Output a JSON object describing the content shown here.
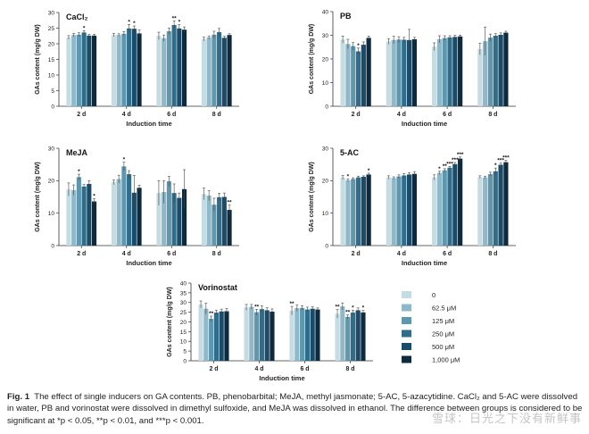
{
  "colors": [
    "#c6dce3",
    "#8fb8c8",
    "#5f98ae",
    "#2f6d8b",
    "#1a4c69",
    "#0d2a3f"
  ],
  "legend": {
    "entries": [
      "0",
      "62.5 μM",
      "125 μM",
      "250 μM",
      "500 μM",
      "1,000 μM"
    ]
  },
  "caption": {
    "label": "Fig. 1",
    "text": "The effect of single inducers on GA contents. PB, phenobarbital; MeJA, methyl jasmonate; 5-AC, 5-azacytidine. CaCl₂ and 5-AC were dissolved in water, PB and vorinostat were dissolved in dimethyl sulfoxide, and MeJA was dissolved in ethanol. The difference between groups is considered to be significant at *p < 0.05, **p < 0.01, and ***p < 0.001."
  },
  "watermark": "雪球：日光之下没有新鲜事",
  "chart_data": [
    {
      "type": "bar",
      "title": "CaCl₂",
      "xlabel": "Induction time",
      "ylabel": "GAs content (mg/g DW)",
      "ylim": [
        0,
        30
      ],
      "yticks": [
        0,
        5,
        10,
        15,
        20,
        25,
        30
      ],
      "categories": [
        "2 d",
        "4 d",
        "6 d",
        "8 d"
      ],
      "series": [
        {
          "name": "0",
          "values": [
            22.0,
            22.8,
            22.5,
            21.5
          ],
          "errors": [
            0.6,
            0.5,
            1.2,
            0.6
          ]
        },
        {
          "name": "62.5 μM",
          "values": [
            22.8,
            22.8,
            21.8,
            22.0
          ],
          "errors": [
            0.5,
            0.4,
            1.0,
            0.5
          ]
        },
        {
          "name": "125 μM",
          "values": [
            22.9,
            23.2,
            24.0,
            22.9
          ],
          "errors": [
            0.6,
            0.7,
            1.0,
            1.1
          ]
        },
        {
          "name": "250 μM",
          "values": [
            23.6,
            24.9,
            26.0,
            23.7
          ],
          "errors": [
            0.6,
            1.3,
            1.3,
            1.2
          ]
        },
        {
          "name": "500 μM",
          "values": [
            22.6,
            24.8,
            24.9,
            21.9
          ],
          "errors": [
            0.4,
            0.9,
            1.2,
            0.5
          ]
        },
        {
          "name": "1,000 μM",
          "values": [
            22.6,
            23.3,
            24.5,
            22.8
          ],
          "errors": [
            0.4,
            1.1,
            0.9,
            0.4
          ]
        }
      ],
      "annotations": [
        [
          "",
          "",
          "",
          "*",
          "",
          ""
        ],
        [
          "",
          "",
          "",
          "*",
          "*",
          ""
        ],
        [
          "",
          "",
          "",
          "**",
          "*",
          ""
        ],
        [
          "",
          "",
          "",
          "",
          "",
          ""
        ]
      ]
    },
    {
      "type": "bar",
      "title": "PB",
      "xlabel": "Induction time",
      "ylabel": "GAs content (mg/g DW)",
      "ylim": [
        0,
        40
      ],
      "yticks": [
        0,
        10,
        20,
        30,
        40
      ],
      "categories": [
        "2 d",
        "4 d",
        "6 d",
        "8 d"
      ],
      "series": [
        {
          "name": "0",
          "values": [
            28.2,
            27.4,
            25.2,
            24.2
          ],
          "errors": [
            1.5,
            1.2,
            1.6,
            2.5
          ]
        },
        {
          "name": "62.5 μM",
          "values": [
            26.3,
            28.0,
            28.3,
            27.5
          ],
          "errors": [
            2.0,
            1.6,
            1.5,
            6.0
          ]
        },
        {
          "name": "125 μM",
          "values": [
            25.4,
            28.2,
            28.8,
            29.0
          ],
          "errors": [
            1.5,
            1.2,
            1.0,
            1.5
          ]
        },
        {
          "name": "250 μM",
          "values": [
            23.2,
            28.1,
            29.1,
            29.8
          ],
          "errors": [
            1.4,
            1.0,
            0.7,
            0.9
          ]
        },
        {
          "name": "500 μM",
          "values": [
            26.0,
            28.0,
            29.3,
            30.2
          ],
          "errors": [
            1.2,
            4.5,
            0.7,
            0.8
          ]
        },
        {
          "name": "1,000 μM",
          "values": [
            28.9,
            28.3,
            29.5,
            31.1
          ],
          "errors": [
            0.8,
            0.8,
            0.6,
            0.6
          ]
        }
      ],
      "annotations": [
        [
          "",
          "",
          "",
          "*",
          "",
          ""
        ],
        [
          "",
          "",
          "",
          "",
          "",
          ""
        ],
        [
          "",
          "",
          "",
          "",
          "",
          ""
        ],
        [
          "",
          "",
          "",
          "",
          "",
          ""
        ]
      ]
    },
    {
      "type": "bar",
      "title": "MeJA",
      "xlabel": "Induction time",
      "ylabel": "GAs content (mg/g DW)",
      "ylim": [
        0,
        30
      ],
      "yticks": [
        0,
        10,
        20,
        30
      ],
      "categories": [
        "2 d",
        "4 d",
        "6 d",
        "8 d"
      ],
      "series": [
        {
          "name": "0",
          "values": [
            17.3,
            19.5,
            16.2,
            15.9
          ],
          "errors": [
            2.0,
            0.7,
            3.8,
            1.8
          ]
        },
        {
          "name": "62.5 μM",
          "values": [
            17.1,
            20.5,
            16.5,
            15.4
          ],
          "errors": [
            1.6,
            1.2,
            3.5,
            1.5
          ]
        },
        {
          "name": "125 μM",
          "values": [
            21.1,
            24.4,
            19.8,
            12.6
          ],
          "errors": [
            0.9,
            1.3,
            1.5,
            2.0
          ]
        },
        {
          "name": "250 μM",
          "values": [
            18.2,
            22.0,
            16.2,
            14.9
          ],
          "errors": [
            0.6,
            1.1,
            2.8,
            1.2
          ]
        },
        {
          "name": "500 μM",
          "values": [
            19.0,
            16.3,
            14.7,
            15.0
          ],
          "errors": [
            1.0,
            5.3,
            1.5,
            1.2
          ]
        },
        {
          "name": "1,000 μM",
          "values": [
            13.6,
            17.8,
            17.4,
            11.0
          ],
          "errors": [
            0.8,
            0.8,
            6.0,
            1.5
          ]
        }
      ],
      "annotations": [
        [
          "",
          "",
          "*",
          "",
          "",
          "*"
        ],
        [
          "",
          "",
          "*",
          "",
          "",
          ""
        ],
        [
          "",
          "",
          "",
          "",
          "",
          ""
        ],
        [
          "",
          "",
          "",
          "",
          "",
          "**"
        ]
      ]
    },
    {
      "type": "bar",
      "title": "5-AC",
      "xlabel": "Induction time",
      "ylabel": "GAs content (mg/g DW)",
      "ylim": [
        0,
        30
      ],
      "yticks": [
        0,
        10,
        20,
        30
      ],
      "categories": [
        "2 d",
        "4 d",
        "6 d",
        "8 d"
      ],
      "series": [
        {
          "name": "0",
          "values": [
            21.0,
            21.0,
            21.0,
            21.1
          ],
          "errors": [
            0.6,
            0.5,
            0.8,
            0.4
          ]
        },
        {
          "name": "62.5 μM",
          "values": [
            20.1,
            20.8,
            22.4,
            21.0
          ],
          "errors": [
            0.4,
            0.4,
            0.5,
            0.4
          ]
        },
        {
          "name": "125 μM",
          "values": [
            20.5,
            21.3,
            23.2,
            22.0
          ],
          "errors": [
            0.4,
            0.5,
            0.5,
            0.6
          ]
        },
        {
          "name": "250 μM",
          "values": [
            21.0,
            21.6,
            24.0,
            22.9
          ],
          "errors": [
            0.4,
            0.6,
            0.4,
            1.0
          ]
        },
        {
          "name": "500 μM",
          "values": [
            21.2,
            21.9,
            25.1,
            24.9
          ],
          "errors": [
            0.3,
            0.6,
            0.5,
            0.5
          ]
        },
        {
          "name": "1,000 μM",
          "values": [
            21.9,
            22.1,
            26.8,
            25.7
          ],
          "errors": [
            0.4,
            0.7,
            0.5,
            0.6
          ]
        }
      ],
      "annotations": [
        [
          "",
          "*",
          "",
          "",
          "",
          "*"
        ],
        [
          "",
          "",
          "",
          "",
          "",
          ""
        ],
        [
          "",
          "*",
          "**",
          "***",
          "***",
          "***"
        ],
        [
          "",
          "",
          "",
          "*",
          "***",
          "***"
        ]
      ]
    },
    {
      "type": "bar",
      "title": "Vorinostat",
      "xlabel": "Induction time",
      "ylabel": "GAs content (mg/g DW)",
      "ylim": [
        0,
        40
      ],
      "yticks": [
        0,
        5,
        10,
        15,
        20,
        25,
        30,
        35,
        40
      ],
      "categories": [
        "2 d",
        "4 d",
        "6 d",
        "8 d"
      ],
      "series": [
        {
          "name": "0",
          "values": [
            29.0,
            27.5,
            25.8,
            24.2
          ],
          "errors": [
            1.8,
            1.5,
            2.2,
            2.2
          ]
        },
        {
          "name": "62.5 μM",
          "values": [
            26.8,
            27.8,
            27.1,
            28.0
          ],
          "errors": [
            2.8,
            1.2,
            1.6,
            1.8
          ]
        },
        {
          "name": "125 μM",
          "values": [
            21.6,
            25.0,
            27.2,
            22.6
          ],
          "errors": [
            1.4,
            1.5,
            1.2,
            1.0
          ]
        },
        {
          "name": "250 μM",
          "values": [
            24.8,
            26.6,
            26.4,
            24.8
          ],
          "errors": [
            1.2,
            1.6,
            1.2,
            1.2
          ]
        },
        {
          "name": "500 μM",
          "values": [
            25.4,
            26.0,
            26.8,
            26.0
          ],
          "errors": [
            1.2,
            1.3,
            1.0,
            1.2
          ]
        },
        {
          "name": "1,000 μM",
          "values": [
            25.5,
            25.3,
            26.4,
            24.9
          ],
          "errors": [
            1.4,
            1.4,
            0.8,
            1.0
          ]
        }
      ],
      "annotations": [
        [
          "",
          "",
          "**",
          "",
          "",
          ""
        ],
        [
          "",
          "",
          "**",
          "",
          "",
          ""
        ],
        [
          "**",
          "",
          "",
          "",
          "",
          ""
        ],
        [
          "**",
          "",
          "**",
          "*",
          "",
          "*"
        ]
      ]
    }
  ]
}
